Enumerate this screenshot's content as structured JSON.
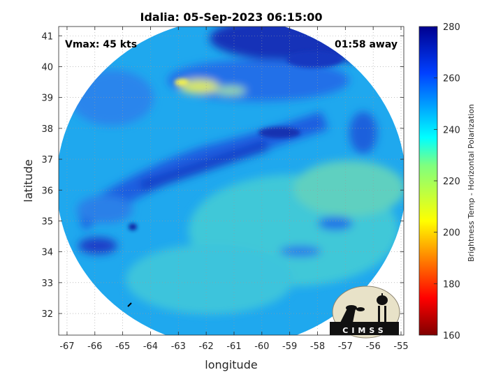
{
  "chart_data": {
    "type": "heatmap",
    "title": "Idalia: 05-Sep-2023 06:15:00",
    "xlabel": "longitude",
    "ylabel": "latitude",
    "xlim": [
      -67.3,
      -54.9
    ],
    "ylim": [
      31.3,
      41.3
    ],
    "xticks": [
      "-67",
      "-66",
      "-65",
      "-64",
      "-63",
      "-62",
      "-61",
      "-60",
      "-59",
      "-58",
      "-57",
      "-56",
      "-55"
    ],
    "yticks": [
      "32",
      "33",
      "34",
      "35",
      "36",
      "37",
      "38",
      "39",
      "40",
      "41"
    ],
    "grid": true,
    "annotation_left": "Vmax: 45 kts",
    "annotation_right": "01:58 away",
    "colorbar": {
      "label": "Brightness Temp - Horizontal Polarization",
      "min": 160,
      "max": 280,
      "ticks": [
        "160",
        "180",
        "200",
        "220",
        "240",
        "260",
        "280"
      ],
      "colormap": "jet"
    },
    "swath": {
      "center": [
        -61,
        36.3
      ],
      "shape": "circle",
      "background": "white outside swath"
    },
    "features": [
      {
        "description_value": 205,
        "lon": -62.5,
        "lat": 39.4
      },
      {
        "description_value": 258,
        "lon": -61.5,
        "lat": 37.8
      },
      {
        "description_value": 262,
        "lon": -66.0,
        "lat": 34.2
      },
      {
        "description_value": 275,
        "lon": -59.5,
        "lat": 41.1
      }
    ],
    "logo_text": "CIMSS"
  }
}
